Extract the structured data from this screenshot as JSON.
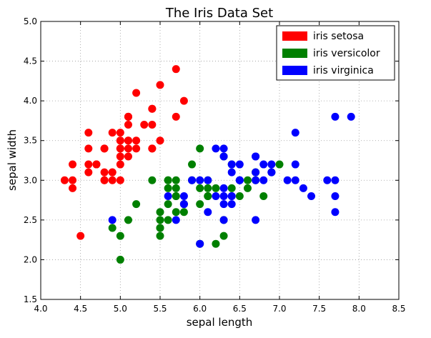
{
  "chart_data": {
    "type": "scatter",
    "title": "The Iris Data Set",
    "xlabel": "sepal length",
    "ylabel": "sepal width",
    "xlim": [
      4.0,
      8.5
    ],
    "ylim": [
      1.5,
      5.0
    ],
    "xticks": [
      "4.0",
      "4.5",
      "5.0",
      "5.5",
      "6.0",
      "6.5",
      "7.0",
      "7.5",
      "8.0",
      "8.5"
    ],
    "yticks": [
      "1.5",
      "2.0",
      "2.5",
      "3.0",
      "3.5",
      "4.0",
      "4.5",
      "5.0"
    ],
    "grid": true,
    "legend_position": "top-right",
    "series": [
      {
        "name": "iris setosa",
        "color": "#ff0000",
        "points": [
          [
            5.1,
            3.5
          ],
          [
            4.9,
            3.0
          ],
          [
            4.7,
            3.2
          ],
          [
            4.6,
            3.1
          ],
          [
            5.0,
            3.6
          ],
          [
            5.4,
            3.9
          ],
          [
            4.6,
            3.4
          ],
          [
            5.0,
            3.4
          ],
          [
            4.4,
            2.9
          ],
          [
            4.9,
            3.1
          ],
          [
            5.4,
            3.7
          ],
          [
            4.8,
            3.4
          ],
          [
            4.8,
            3.0
          ],
          [
            4.3,
            3.0
          ],
          [
            5.8,
            4.0
          ],
          [
            5.7,
            4.4
          ],
          [
            5.4,
            3.9
          ],
          [
            5.1,
            3.5
          ],
          [
            5.7,
            3.8
          ],
          [
            5.1,
            3.8
          ],
          [
            5.4,
            3.4
          ],
          [
            5.1,
            3.7
          ],
          [
            4.6,
            3.6
          ],
          [
            5.1,
            3.3
          ],
          [
            4.8,
            3.4
          ],
          [
            5.0,
            3.0
          ],
          [
            5.0,
            3.4
          ],
          [
            5.2,
            3.5
          ],
          [
            5.2,
            3.4
          ],
          [
            4.7,
            3.2
          ],
          [
            4.8,
            3.1
          ],
          [
            5.4,
            3.4
          ],
          [
            5.2,
            4.1
          ],
          [
            5.5,
            4.2
          ],
          [
            4.9,
            3.1
          ],
          [
            5.0,
            3.2
          ],
          [
            5.5,
            3.5
          ],
          [
            4.9,
            3.6
          ],
          [
            4.4,
            3.0
          ],
          [
            5.1,
            3.4
          ],
          [
            5.0,
            3.5
          ],
          [
            4.5,
            2.3
          ],
          [
            4.4,
            3.2
          ],
          [
            5.0,
            3.5
          ],
          [
            5.1,
            3.8
          ],
          [
            4.8,
            3.0
          ],
          [
            5.1,
            3.8
          ],
          [
            4.6,
            3.2
          ],
          [
            5.3,
            3.7
          ],
          [
            5.0,
            3.3
          ]
        ]
      },
      {
        "name": "iris versicolor",
        "color": "#008000",
        "points": [
          [
            7.0,
            3.2
          ],
          [
            6.4,
            3.2
          ],
          [
            6.9,
            3.1
          ],
          [
            5.5,
            2.3
          ],
          [
            6.5,
            2.8
          ],
          [
            5.7,
            2.8
          ],
          [
            6.3,
            3.3
          ],
          [
            4.9,
            2.4
          ],
          [
            6.6,
            2.9
          ],
          [
            5.2,
            2.7
          ],
          [
            5.0,
            2.0
          ],
          [
            5.9,
            3.0
          ],
          [
            6.0,
            2.2
          ],
          [
            6.1,
            2.9
          ],
          [
            5.6,
            2.9
          ],
          [
            6.7,
            3.1
          ],
          [
            5.6,
            3.0
          ],
          [
            5.8,
            2.7
          ],
          [
            6.2,
            2.2
          ],
          [
            5.6,
            2.5
          ],
          [
            5.9,
            3.2
          ],
          [
            6.1,
            2.8
          ],
          [
            6.3,
            2.5
          ],
          [
            6.1,
            2.8
          ],
          [
            6.4,
            2.9
          ],
          [
            6.6,
            3.0
          ],
          [
            6.8,
            2.8
          ],
          [
            6.7,
            3.0
          ],
          [
            6.0,
            2.9
          ],
          [
            5.7,
            2.6
          ],
          [
            5.5,
            2.4
          ],
          [
            5.5,
            2.4
          ],
          [
            5.8,
            2.7
          ],
          [
            6.0,
            2.7
          ],
          [
            5.4,
            3.0
          ],
          [
            6.0,
            3.4
          ],
          [
            6.7,
            3.1
          ],
          [
            6.3,
            2.3
          ],
          [
            5.6,
            3.0
          ],
          [
            5.5,
            2.5
          ],
          [
            5.5,
            2.6
          ],
          [
            6.1,
            3.0
          ],
          [
            5.8,
            2.6
          ],
          [
            5.0,
            2.3
          ],
          [
            5.6,
            2.7
          ],
          [
            5.7,
            3.0
          ],
          [
            5.7,
            2.9
          ],
          [
            6.2,
            2.9
          ],
          [
            5.1,
            2.5
          ],
          [
            5.7,
            2.8
          ]
        ]
      },
      {
        "name": "iris virginica",
        "color": "#0000ff",
        "points": [
          [
            6.3,
            3.3
          ],
          [
            5.8,
            2.7
          ],
          [
            7.1,
            3.0
          ],
          [
            6.3,
            2.9
          ],
          [
            6.5,
            3.0
          ],
          [
            7.6,
            3.0
          ],
          [
            4.9,
            2.5
          ],
          [
            7.3,
            2.9
          ],
          [
            6.7,
            2.5
          ],
          [
            7.2,
            3.6
          ],
          [
            6.5,
            3.2
          ],
          [
            6.4,
            2.7
          ],
          [
            6.8,
            3.0
          ],
          [
            5.7,
            2.5
          ],
          [
            5.8,
            2.8
          ],
          [
            6.4,
            3.2
          ],
          [
            6.5,
            3.0
          ],
          [
            7.7,
            3.8
          ],
          [
            7.7,
            2.6
          ],
          [
            6.0,
            2.2
          ],
          [
            6.9,
            3.2
          ],
          [
            5.6,
            2.8
          ],
          [
            7.7,
            2.8
          ],
          [
            6.3,
            2.7
          ],
          [
            6.7,
            3.3
          ],
          [
            7.2,
            3.2
          ],
          [
            6.2,
            2.8
          ],
          [
            6.1,
            3.0
          ],
          [
            6.4,
            2.8
          ],
          [
            7.2,
            3.0
          ],
          [
            7.4,
            2.8
          ],
          [
            7.9,
            3.8
          ],
          [
            6.4,
            2.8
          ],
          [
            6.3,
            2.8
          ],
          [
            6.1,
            2.6
          ],
          [
            7.7,
            3.0
          ],
          [
            6.3,
            3.4
          ],
          [
            6.4,
            3.1
          ],
          [
            6.0,
            3.0
          ],
          [
            6.9,
            3.1
          ],
          [
            6.7,
            3.1
          ],
          [
            6.9,
            3.1
          ],
          [
            5.8,
            2.7
          ],
          [
            6.8,
            3.2
          ],
          [
            6.7,
            3.3
          ],
          [
            6.7,
            3.0
          ],
          [
            6.3,
            2.5
          ],
          [
            6.5,
            3.0
          ],
          [
            6.2,
            3.4
          ],
          [
            5.9,
            3.0
          ]
        ]
      }
    ]
  }
}
